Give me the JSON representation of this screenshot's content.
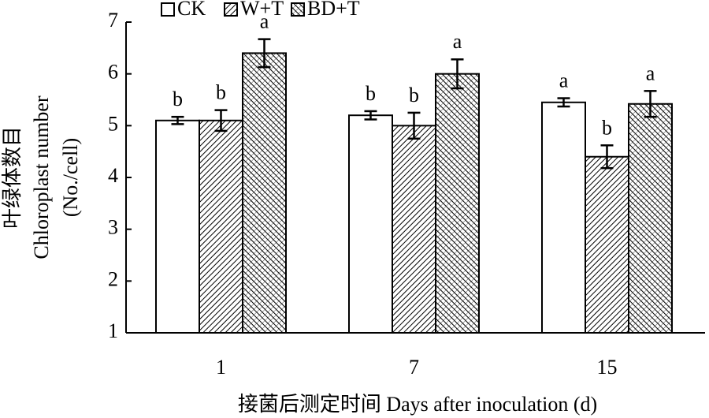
{
  "chart_data": {
    "type": "bar",
    "categories": [
      "1",
      "7",
      "15"
    ],
    "series": [
      {
        "name": "CK",
        "pattern": "none",
        "color": "#000000",
        "values": [
          5.1,
          5.2,
          5.45
        ],
        "errors": [
          0.07,
          0.08,
          0.08
        ],
        "letters": [
          "b",
          "b",
          "a"
        ]
      },
      {
        "name": "W+T",
        "pattern": "diagonal",
        "color": "#000000",
        "values": [
          5.1,
          5.0,
          4.4
        ],
        "errors": [
          0.2,
          0.25,
          0.22
        ],
        "letters": [
          "b",
          "b",
          "b"
        ]
      },
      {
        "name": "BD+T",
        "pattern": "cross",
        "color": "#000000",
        "values": [
          6.4,
          6.0,
          5.42
        ],
        "errors": [
          0.27,
          0.28,
          0.25
        ],
        "letters": [
          "a",
          "a",
          "a"
        ]
      }
    ],
    "y_label": [
      "叶绿体数目",
      "Chloroplast number",
      "(No./cell)"
    ],
    "x_label": "接菌后测定时间 Days after inoculation (d)",
    "ylim": [
      1,
      7
    ],
    "yticks": [
      1,
      2,
      3,
      4,
      5,
      6,
      7
    ],
    "legend": "top"
  }
}
